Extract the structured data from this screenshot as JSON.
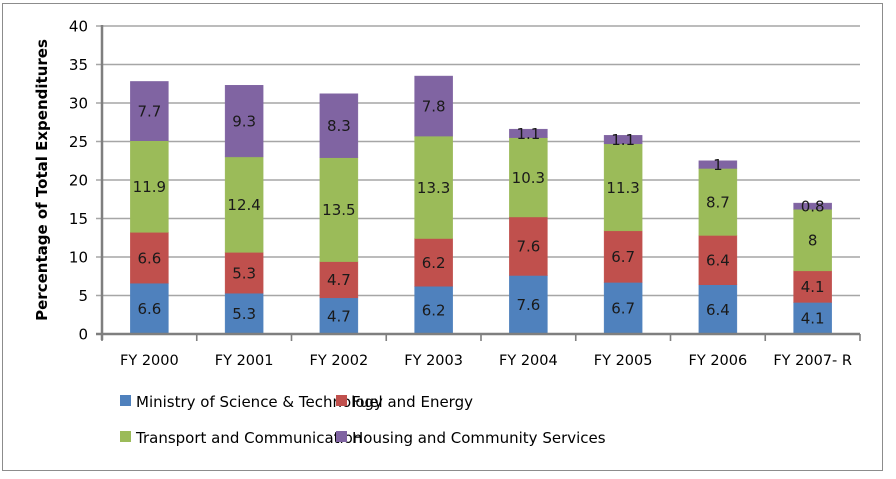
{
  "chart_data": {
    "type": "bar",
    "stacked": true,
    "title": "",
    "xlabel": "",
    "ylabel": "Percentage of Total Expenditures",
    "ylim": [
      0,
      40
    ],
    "yticks": [
      0,
      5,
      10,
      15,
      20,
      25,
      30,
      35,
      40
    ],
    "grid": true,
    "legend_position": "bottom",
    "categories": [
      "FY 2000",
      "FY 2001",
      "FY 2002",
      "FY 2003",
      "FY 2004",
      "FY 2005",
      "FY 2006",
      "FY 2007- R"
    ],
    "series": [
      {
        "name": "Ministry of Science & Technology",
        "color": "#4f81bd",
        "values": [
          6.6,
          5.3,
          4.7,
          6.2,
          7.6,
          6.7,
          6.4,
          4.1
        ],
        "labels": [
          "6.6",
          "5.3",
          "4.7",
          "6.2",
          "7.6",
          "6.7",
          "6.4",
          "4.1"
        ]
      },
      {
        "name": "Fuel and Energy",
        "color": "#c0504d",
        "values": [
          6.6,
          5.3,
          4.7,
          6.2,
          7.6,
          6.7,
          6.4,
          4.1
        ],
        "labels": [
          "6.6",
          "5.3",
          "4.7",
          "6.2",
          "7.6",
          "6.7",
          "6.4",
          "4.1"
        ]
      },
      {
        "name": "Transport and Communication",
        "color": "#9bbb59",
        "values": [
          11.9,
          12.4,
          13.5,
          13.3,
          10.3,
          11.3,
          8.7,
          8
        ],
        "labels": [
          "11.9",
          "12.4",
          "13.5",
          "13.3",
          "10.3",
          "11.3",
          "8.7",
          "8"
        ]
      },
      {
        "name": "Housing and Community Services",
        "color": "#8064a2",
        "values": [
          7.7,
          9.3,
          8.3,
          7.8,
          1.1,
          1.1,
          1,
          0.8
        ],
        "labels": [
          "7.7",
          "9.3",
          "8.3",
          "7.8",
          "1.1",
          "1.1",
          "1",
          "0.8"
        ]
      }
    ]
  }
}
